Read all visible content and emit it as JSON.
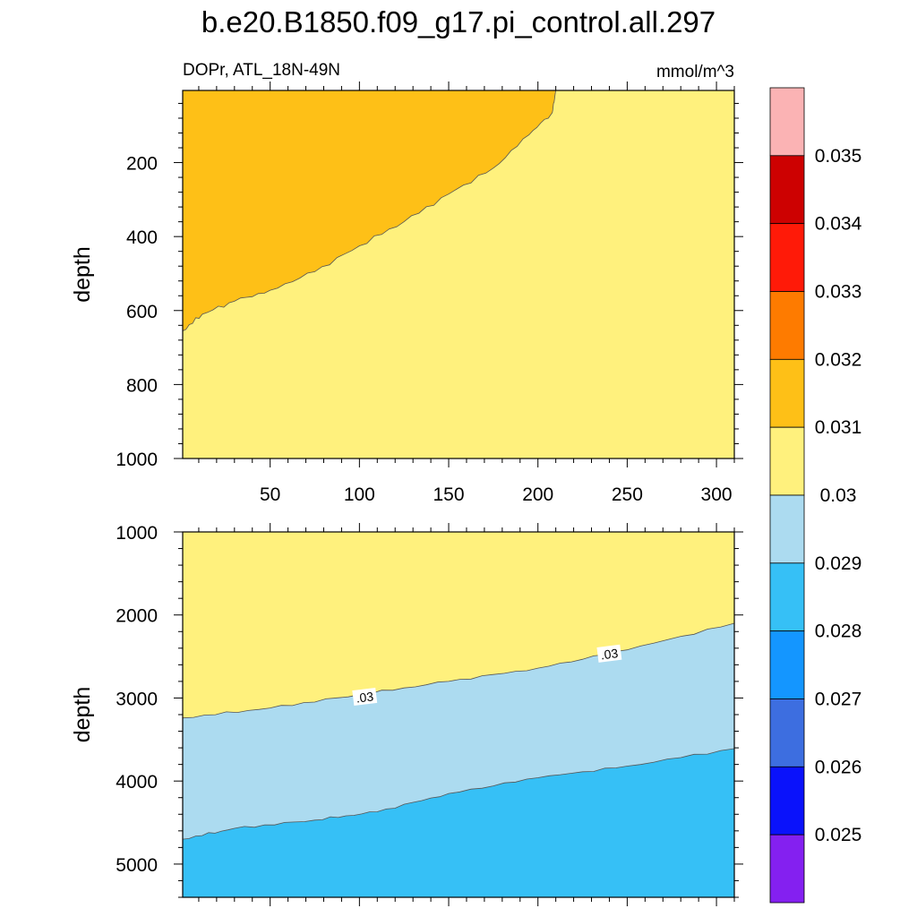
{
  "title": "b.e20.B1850.f09_g17.pi_control.all.297",
  "left_string": "DOPr, ATL_18N-49N",
  "right_string": "mmol/m^3",
  "colors": {
    "c_0030_0031": "#fff17d",
    "c_0031_0032": "#fec017",
    "c_0029_0030": "#acdbf0",
    "c_0028_0029": "#36c0f6",
    "contour_line": "#555555"
  },
  "chart_data": [
    {
      "type": "contour",
      "panel": "upper",
      "ylabel": "depth",
      "xlim": [
        1,
        310
      ],
      "ylim": [
        1000,
        5
      ],
      "y_reversed": true,
      "x_ticks": [
        50,
        100,
        150,
        200,
        250,
        300
      ],
      "x_tick_labels": [
        "50",
        "100",
        "150",
        "200",
        "250",
        "300"
      ],
      "y_ticks": [
        200,
        400,
        600,
        800,
        1000
      ],
      "y_tick_labels": [
        "200",
        "400",
        "600",
        "800",
        "1000"
      ],
      "background_level": "0.030-0.031",
      "regions": [
        {
          "level": "0.031-0.032",
          "color_key": "c_0031_0032",
          "boundary": [
            [
              1,
              655
            ],
            [
              12,
              610
            ],
            [
              30,
              575
            ],
            [
              50,
              545
            ],
            [
              75,
              495
            ],
            [
              100,
              425
            ],
            [
              125,
              360
            ],
            [
              150,
              285
            ],
            [
              175,
              215
            ],
            [
              195,
              125
            ],
            [
              208,
              65
            ],
            [
              210,
              5
            ]
          ]
        }
      ]
    },
    {
      "type": "contour",
      "panel": "lower",
      "ylabel": "depth",
      "xlim": [
        1,
        310
      ],
      "ylim": [
        5400,
        1000
      ],
      "y_reversed": true,
      "x_ticks": [
        50,
        100,
        150,
        200,
        250,
        300
      ],
      "y_ticks": [
        1000,
        2000,
        3000,
        4000,
        5000
      ],
      "y_tick_labels": [
        "1000",
        "2000",
        "3000",
        "4000",
        "5000"
      ],
      "bands": [
        {
          "level": "0.030-0.031",
          "color_key": "c_0030_0031"
        },
        {
          "level": "0.029-0.030",
          "color_key": "c_0029_0030",
          "upper_boundary": [
            [
              1,
              3240
            ],
            [
              50,
              3120
            ],
            [
              100,
              2960
            ],
            [
              150,
              2800
            ],
            [
              200,
              2640
            ],
            [
              250,
              2420
            ],
            [
              310,
              2100
            ]
          ]
        },
        {
          "level": "0.028-0.029",
          "color_key": "c_0028_0029",
          "upper_boundary": [
            [
              1,
              4700
            ],
            [
              30,
              4570
            ],
            [
              75,
              4470
            ],
            [
              110,
              4370
            ],
            [
              150,
              4150
            ],
            [
              200,
              3960
            ],
            [
              250,
              3820
            ],
            [
              310,
              3610
            ]
          ]
        }
      ],
      "line_labels": [
        {
          "text": ".03",
          "x": 103,
          "y": 2990
        },
        {
          "text": ".03",
          "x": 240,
          "y": 2470
        }
      ]
    }
  ],
  "colorbar": {
    "levels": [
      "0.025",
      "0.026",
      "0.027",
      "0.028",
      "0.029",
      "0.03",
      "0.031",
      "0.032",
      "0.033",
      "0.034",
      "0.035"
    ],
    "colors": [
      "#fbb3b4",
      "#cd0101",
      "#ff1a08",
      "#fe7b00",
      "#fec017",
      "#fff17d",
      "#acdbf0",
      "#36c0f6",
      "#1496ff",
      "#3d6ee0",
      "#0a12fb",
      "#8420f0"
    ]
  }
}
